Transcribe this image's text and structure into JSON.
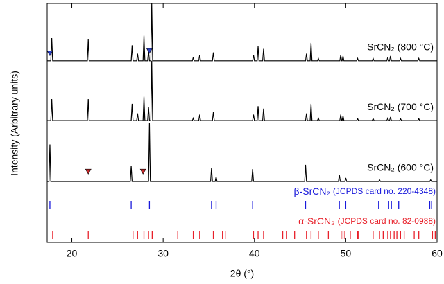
{
  "chart_data": {
    "type": "xrd",
    "xlabel": "2θ (°)",
    "ylabel": "Intensity (Arbitrary units)",
    "xlim": [
      17.3,
      60
    ],
    "xticks": [
      20,
      30,
      40,
      50,
      60
    ],
    "ylim": [
      0,
      100
    ],
    "series": [
      {
        "name": "SrCN₂ (800 °C)",
        "color": "#000000",
        "x": [
          17.3,
          17.7,
          17.8,
          17.9,
          21.7,
          21.8,
          21.9,
          26.5,
          26.6,
          26.7,
          27.1,
          27.2,
          27.3,
          27.8,
          27.9,
          28.0,
          28.3,
          28.4,
          28.5,
          28.65,
          28.75,
          28.85,
          33.2,
          33.3,
          33.4,
          33.9,
          34.0,
          34.1,
          35.4,
          35.5,
          35.6,
          39.8,
          39.9,
          40.0,
          40.3,
          40.4,
          40.5,
          40.9,
          41.0,
          41.1,
          45.6,
          45.7,
          45.8,
          46.1,
          46.2,
          46.3,
          46.9,
          47.0,
          47.1,
          49.35,
          49.45,
          49.55,
          49.6,
          49.7,
          49.8,
          51.2,
          51.3,
          51.4,
          52.9,
          53.0,
          53.1,
          54.5,
          54.6,
          54.7,
          54.8,
          54.9,
          55.0,
          55.9,
          56.0,
          56.1,
          57.9,
          58.0,
          58.1,
          60
        ],
        "values": [
          76,
          76,
          85.5,
          76,
          76,
          85,
          76,
          76,
          82.5,
          76,
          76,
          79,
          76,
          76,
          86.5,
          76,
          76,
          80,
          76,
          76,
          100,
          76,
          76,
          77.5,
          76,
          76,
          78.5,
          76,
          76,
          79.5,
          76,
          76,
          78.5,
          76,
          76,
          82,
          76,
          76,
          81,
          76,
          76,
          79,
          76,
          76,
          83.5,
          76,
          76,
          77,
          76,
          76,
          78.5,
          76,
          76,
          78,
          76,
          76,
          77,
          76,
          76,
          77,
          76,
          76,
          77.5,
          76,
          76,
          78,
          76,
          76,
          77,
          76,
          76,
          77,
          76,
          76
        ]
      },
      {
        "name": "SrCN₂ (700 °C)",
        "color": "#000000",
        "x": [
          17.3,
          17.7,
          17.8,
          17.9,
          21.7,
          21.8,
          21.9,
          26.5,
          26.6,
          26.7,
          27.1,
          27.2,
          27.3,
          27.8,
          27.9,
          28.0,
          28.3,
          28.4,
          28.5,
          28.65,
          28.75,
          28.85,
          33.2,
          33.3,
          33.4,
          33.9,
          34.0,
          34.1,
          35.4,
          35.5,
          35.6,
          39.8,
          39.9,
          40.0,
          40.3,
          40.4,
          40.5,
          40.9,
          41.0,
          41.1,
          45.6,
          45.7,
          45.8,
          46.1,
          46.2,
          46.3,
          46.9,
          47.0,
          47.1,
          49.35,
          49.45,
          49.55,
          49.6,
          49.7,
          49.8,
          51.2,
          51.3,
          51.4,
          52.9,
          53.0,
          53.1,
          54.5,
          54.6,
          54.7,
          54.8,
          54.9,
          55.0,
          55.9,
          56.0,
          56.1,
          57.9,
          58.0,
          58.1,
          60
        ],
        "values": [
          51,
          51,
          60,
          51,
          51,
          60,
          51,
          51,
          58,
          51,
          51,
          54,
          51,
          51,
          61,
          51,
          51,
          56.5,
          51,
          51,
          76,
          51,
          51,
          52,
          51,
          51,
          53.5,
          51,
          51,
          54.5,
          51,
          51,
          53.5,
          51,
          51,
          57,
          51,
          51,
          56,
          51,
          51,
          54,
          51,
          51,
          58,
          51,
          51,
          52,
          51,
          51,
          53.5,
          51,
          51,
          53,
          51,
          51,
          51.8,
          51,
          51,
          51.8,
          51,
          51,
          52,
          51,
          51,
          52.5,
          51,
          51,
          51.8,
          51,
          51,
          51.8,
          51,
          51
        ]
      },
      {
        "name": "SrCN₂ (600 °C)",
        "color": "#000000",
        "x": [
          17.3,
          17.5,
          17.6,
          17.7,
          26.4,
          26.5,
          26.6,
          28.4,
          28.5,
          28.6,
          35.2,
          35.3,
          35.4,
          35.7,
          35.8,
          35.9,
          39.7,
          39.8,
          39.9,
          45.5,
          45.6,
          45.7,
          49.2,
          49.3,
          49.4,
          49.9,
          50.0,
          50.1,
          53.6,
          53.7,
          53.8,
          59.2,
          59.3,
          59.4,
          60
        ],
        "values": [
          25.5,
          25.5,
          41,
          25.5,
          25.5,
          32,
          25.5,
          25.5,
          50,
          25.5,
          25.5,
          31.3,
          25.5,
          25.5,
          27.5,
          25.5,
          25.5,
          30.7,
          25.5,
          25.5,
          32.5,
          25.5,
          25.5,
          28.4,
          25.5,
          25.5,
          27,
          25.5,
          25.5,
          26.2,
          25.5,
          25.5,
          26.2,
          25.5,
          25.5
        ]
      }
    ],
    "markers": [
      {
        "x": 17.6,
        "y": 79,
        "color": "#2b3fbf"
      },
      {
        "x": 28.5,
        "y": 80,
        "color": "#2b3fbf"
      },
      {
        "x": 21.8,
        "y": 29.5,
        "color": "#c8282a"
      },
      {
        "x": 27.8,
        "y": 29.5,
        "color": "#c8282a"
      }
    ],
    "references": [
      {
        "name": "β-SrCN₂",
        "note": "(JCPDS card no. 220-4348)",
        "color": "#1a1adb",
        "x": [
          17.6,
          26.5,
          28.5,
          35.3,
          35.8,
          39.8,
          45.6,
          49.3,
          50.0,
          53.6,
          54.7,
          55.0,
          55.8,
          59.2,
          59.4
        ]
      },
      {
        "name": "α-SrCN₂",
        "note": "(JCPDS card no. 82-0988)",
        "color": "#e8202a",
        "x": [
          17.9,
          21.8,
          26.7,
          27.2,
          27.9,
          28.4,
          28.8,
          31.6,
          33.3,
          34.0,
          35.5,
          36.5,
          36.8,
          39.9,
          40.4,
          41.0,
          43.1,
          43.5,
          44.4,
          45.7,
          46.2,
          47.0,
          48.1,
          49.5,
          49.7,
          49.9,
          50.5,
          51.3,
          51.4,
          53.0,
          53.7,
          54.1,
          54.6,
          54.9,
          55.3,
          55.6,
          56.0,
          56.4,
          57.5,
          58.0,
          59.5,
          59.8
        ]
      }
    ]
  }
}
